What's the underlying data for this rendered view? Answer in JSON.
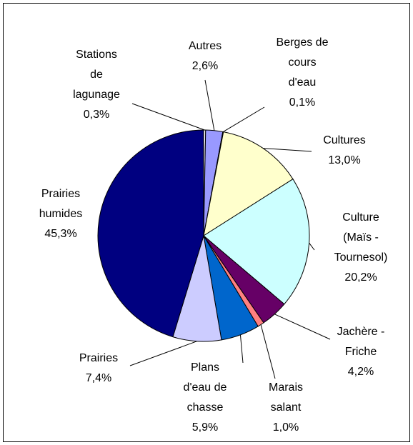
{
  "chart_data": {
    "type": "pie",
    "categories": [
      "Stations\nde\nlagunage",
      "Autres",
      "Berges de\ncours\nd'eau",
      "Cultures",
      "Culture\n(Maïs -\nTournesol)",
      "Jachère -\nFriche",
      "Marais\nsalant",
      "Plans\nd'eau de\nchasse",
      "Prairies",
      "Prairies\nhumides"
    ],
    "values": [
      0.3,
      2.6,
      0.1,
      13.0,
      20.2,
      4.2,
      1.0,
      5.9,
      7.4,
      45.3
    ],
    "value_labels": [
      "0,3%",
      "2,6%",
      "0,1%",
      "13,0%",
      "20,2%",
      "4,2%",
      "1,0%",
      "5,9%",
      "7,4%",
      "45,3%"
    ],
    "colors": [
      "#ffffff",
      "#9999ff",
      "#993366",
      "#ffffcc",
      "#ccffff",
      "#660066",
      "#ff8080",
      "#0066cc",
      "#ccccff",
      "#000080"
    ]
  }
}
